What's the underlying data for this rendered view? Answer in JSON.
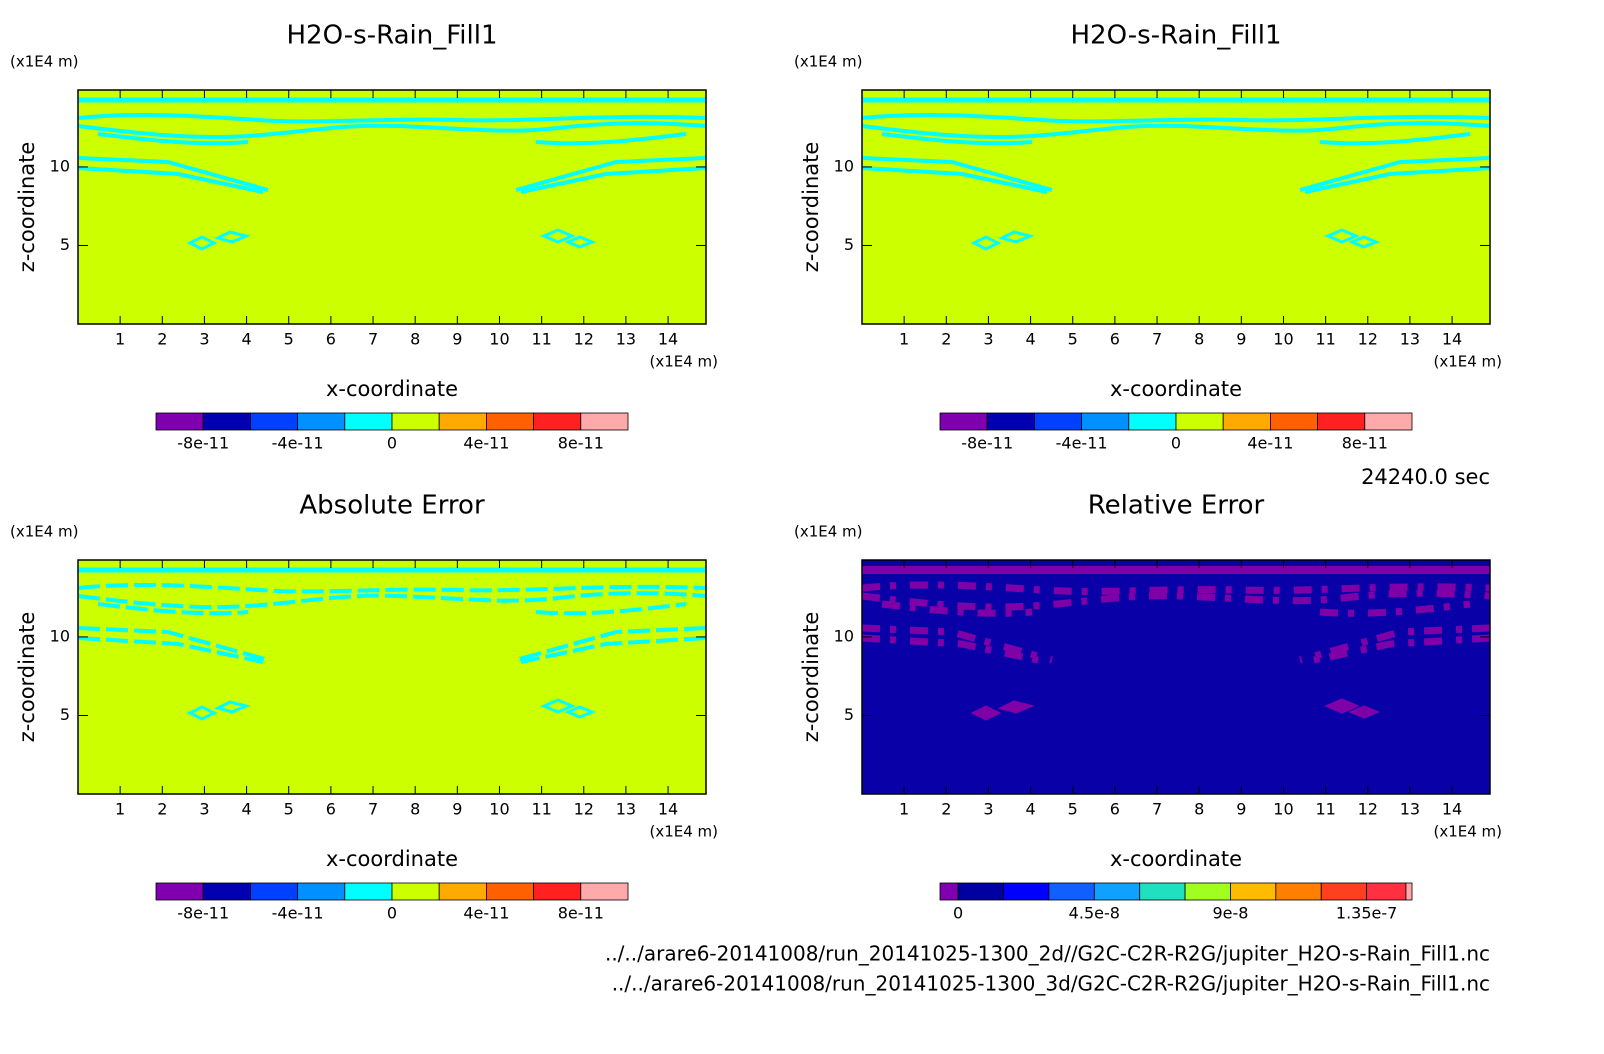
{
  "chart_data": [
    {
      "type": "contour",
      "title": "H2O-s-Rain_Fill1",
      "xlabel": "x-coordinate",
      "ylabel": "z-coordinate",
      "x_unit": "(x1E4 m)",
      "y_unit": "(x1E4 m)",
      "xlim": [
        0,
        14.9
      ],
      "ylim": [
        0,
        14.9
      ],
      "xticks": [
        1,
        2,
        3,
        4,
        5,
        6,
        7,
        8,
        9,
        10,
        11,
        12,
        13,
        14
      ],
      "yticks": [
        5,
        10
      ],
      "colorbar": {
        "levels": [
          -1e-10,
          -8e-11,
          -6e-11,
          -4e-11,
          -2e-11,
          0,
          2e-11,
          4e-11,
          6e-11,
          8e-11,
          1e-10
        ],
        "colors": [
          "#8000b0",
          "#0000b0",
          "#0040ff",
          "#0090ff",
          "#00ffff",
          "#ccff00",
          "#ffaa00",
          "#ff6000",
          "#ff2020",
          "#ffaaaa"
        ],
        "ticks": [
          -8e-11,
          -4e-11,
          0,
          4e-11,
          8e-11
        ]
      }
    },
    {
      "type": "contour",
      "title": "H2O-s-Rain_Fill1",
      "xlabel": "x-coordinate",
      "ylabel": "z-coordinate",
      "x_unit": "(x1E4 m)",
      "y_unit": "(x1E4 m)",
      "xlim": [
        0,
        14.9
      ],
      "ylim": [
        0,
        14.9
      ],
      "xticks": [
        1,
        2,
        3,
        4,
        5,
        6,
        7,
        8,
        9,
        10,
        11,
        12,
        13,
        14
      ],
      "yticks": [
        5,
        10
      ],
      "colorbar": {
        "levels": [
          -1e-10,
          -8e-11,
          -6e-11,
          -4e-11,
          -2e-11,
          0,
          2e-11,
          4e-11,
          6e-11,
          8e-11,
          1e-10
        ],
        "colors": [
          "#8000b0",
          "#0000b0",
          "#0040ff",
          "#0090ff",
          "#00ffff",
          "#ccff00",
          "#ffaa00",
          "#ff6000",
          "#ff2020",
          "#ffaaaa"
        ],
        "ticks": [
          -8e-11,
          -4e-11,
          0,
          4e-11,
          8e-11
        ]
      }
    },
    {
      "type": "contour",
      "title": "Absolute Error",
      "xlabel": "x-coordinate",
      "ylabel": "z-coordinate",
      "x_unit": "(x1E4 m)",
      "y_unit": "(x1E4 m)",
      "xlim": [
        0,
        14.9
      ],
      "ylim": [
        0,
        14.9
      ],
      "xticks": [
        1,
        2,
        3,
        4,
        5,
        6,
        7,
        8,
        9,
        10,
        11,
        12,
        13,
        14
      ],
      "yticks": [
        5,
        10
      ],
      "colorbar": {
        "levels": [
          -1e-10,
          -8e-11,
          -6e-11,
          -4e-11,
          -2e-11,
          0,
          2e-11,
          4e-11,
          6e-11,
          8e-11,
          1e-10
        ],
        "colors": [
          "#8000b0",
          "#0000b0",
          "#0040ff",
          "#0090ff",
          "#00ffff",
          "#ccff00",
          "#ffaa00",
          "#ff6000",
          "#ff2020",
          "#ffaaaa"
        ],
        "ticks": [
          -8e-11,
          -4e-11,
          0,
          4e-11,
          8e-11
        ]
      }
    },
    {
      "type": "contour",
      "title": "Relative Error",
      "xlabel": "x-coordinate",
      "ylabel": "z-coordinate",
      "x_unit": "(x1E4 m)",
      "y_unit": "(x1E4 m)",
      "xlim": [
        0,
        14.9
      ],
      "ylim": [
        0,
        14.9
      ],
      "xticks": [
        1,
        2,
        3,
        4,
        5,
        6,
        7,
        8,
        9,
        10,
        11,
        12,
        13,
        14
      ],
      "yticks": [
        5,
        10
      ],
      "colorbar": {
        "levels": [
          -6e-09,
          0,
          1.5e-08,
          3e-08,
          4.5e-08,
          6e-08,
          7.5e-08,
          9e-08,
          1.05e-07,
          1.2e-07,
          1.35e-07,
          1.48e-07,
          1.5e-07
        ],
        "colors": [
          "#8000b0",
          "#0000a0",
          "#0000ff",
          "#1060ff",
          "#10a0ff",
          "#20e0c0",
          "#a0ff20",
          "#ffbb00",
          "#ff8000",
          "#ff4020",
          "#ff3040",
          "#ffaaaa"
        ],
        "ticks": [
          0,
          4.5e-08,
          9e-08,
          1.35e-07
        ]
      }
    }
  ],
  "time": "24240.0 sec",
  "files": [
    "../../arare6-20141008/run_20141025-1300_2d//G2C-C2R-R2G/jupiter_H2O-s-Rain_Fill1.nc",
    "../../arare6-20141008/run_20141025-1300_3d/G2C-C2R-R2G/jupiter_H2O-s-Rain_Fill1.nc"
  ]
}
